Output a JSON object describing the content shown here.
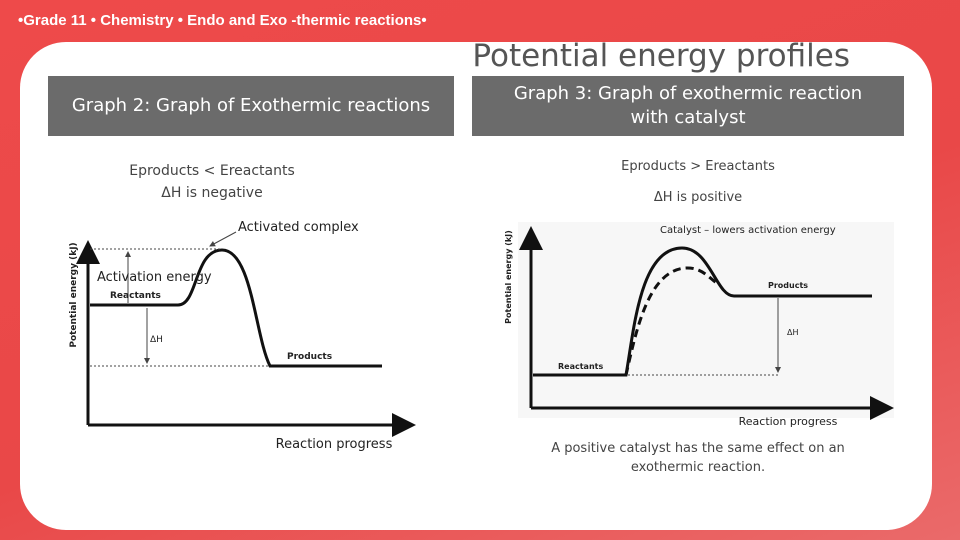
{
  "header": {
    "text": "•Grade 11 • Chemistry • Endo and Exo -thermic reactions•"
  },
  "title": "Potential energy profiles",
  "left": {
    "box_title": "Graph 2: Graph of Exothermic reactions",
    "note_line1": "Eproducts < Ereactants",
    "note_line2": "ΔH is negative",
    "diagram": {
      "y_axis_label": "Potential energy (kJ)",
      "x_axis_label": "Reaction progress",
      "activated_complex": "Activated complex",
      "activation_energy": "Activation  energy",
      "reactants": "Reactants",
      "products": "Products",
      "delta_h": "ΔH"
    }
  },
  "right": {
    "box_title_line1": "Graph 3: Graph of exothermic reaction",
    "box_title_line2": "with  catalyst",
    "note_line1": "Eproducts > Ereactants",
    "note_line2": "ΔH is positive",
    "diagram": {
      "catalyst_label": "Catalyst – lowers activation energy",
      "y_axis_label": "Potential energy (kJ)",
      "x_axis_label": "Reaction progress",
      "reactants": "Reactants",
      "products": "Products",
      "delta_h": "ΔH"
    },
    "footer_line1": "A positive catalyst has the same effect on an",
    "footer_line2": "exothermic reaction."
  }
}
